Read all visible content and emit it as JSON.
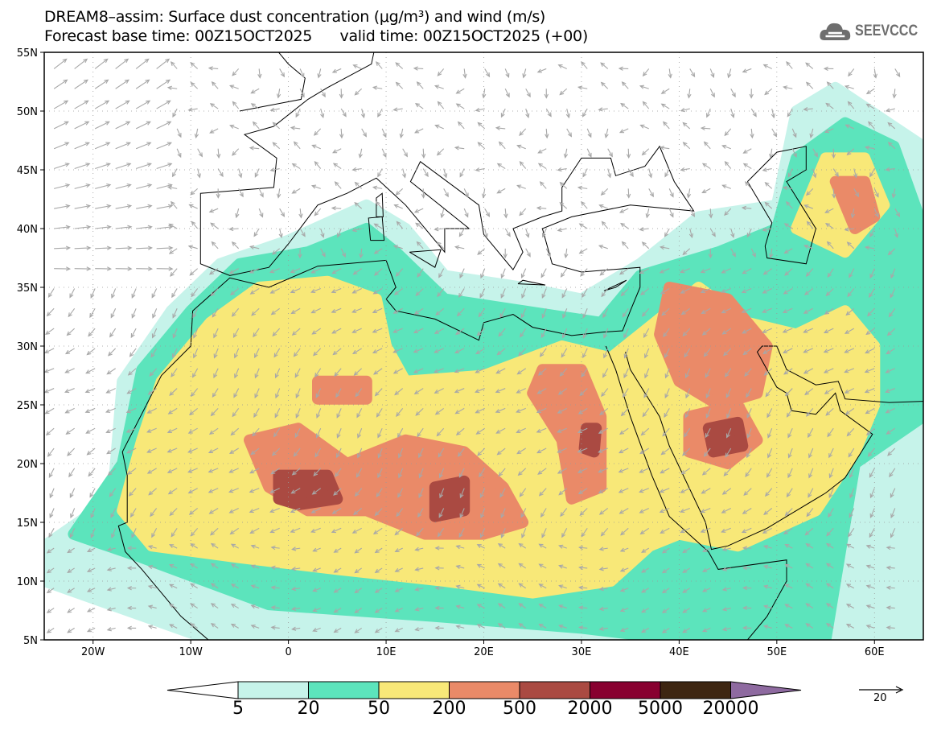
{
  "header": {
    "title_line1": "DREAM8–assim: Surface dust concentration (μg/m³) and wind (m/s)",
    "title_line2": "Forecast base time: 00Z15OCT2025      valid time: 00Z15OCT2025 (+00)",
    "logo_text": "SEEVCCC"
  },
  "axes": {
    "lat_labels": [
      "5N",
      "10N",
      "15N",
      "20N",
      "25N",
      "30N",
      "35N",
      "40N",
      "45N",
      "50N",
      "55N"
    ],
    "lat_values": [
      5,
      10,
      15,
      20,
      25,
      30,
      35,
      40,
      45,
      50,
      55
    ],
    "lon_labels": [
      "20W",
      "10W",
      "0",
      "10E",
      "20E",
      "30E",
      "40E",
      "50E",
      "60E"
    ],
    "lon_values": [
      -20,
      -10,
      0,
      10,
      20,
      30,
      40,
      50,
      60
    ],
    "lon_range": [
      -25,
      65
    ],
    "lat_range": [
      5,
      55
    ]
  },
  "colorbar": {
    "labels": [
      "5",
      "20",
      "50",
      "200",
      "500",
      "2000",
      "5000",
      "20000"
    ],
    "colors": [
      "#c6f3ea",
      "#5ce4bc",
      "#f8e878",
      "#ea8a68",
      "#aa4a42",
      "#880030",
      "#3e2612"
    ],
    "over_color": "#8e6aa0",
    "under_color": "#ffffff"
  },
  "wind_reference": {
    "label": "20",
    "color": "#a8a8a8"
  }
}
